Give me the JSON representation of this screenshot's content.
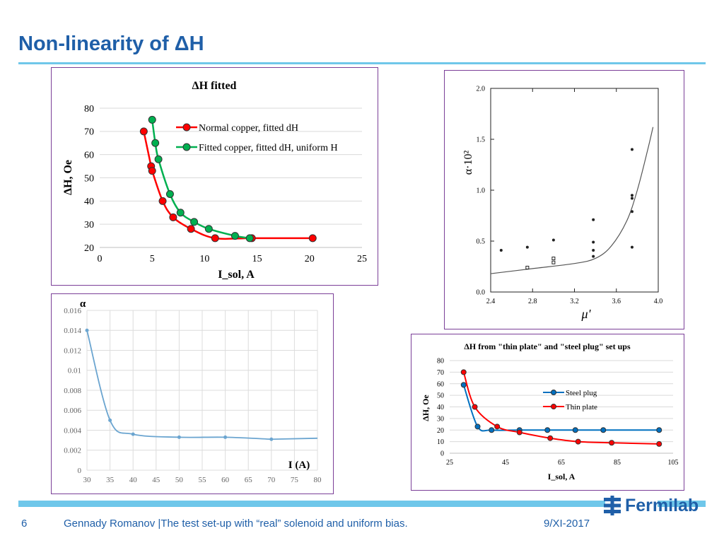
{
  "slide": {
    "title": "Non-linearity of ΔH",
    "page_number": "6",
    "footer_text": "Gennady Romanov |The test set-up with “real” solenoid and uniform bias.",
    "date": "9/XI-2017",
    "logo_text": "Fermilab",
    "accent_color": "#1f5fa8",
    "rule_color": "#6fc7ea"
  },
  "chart_data": [
    {
      "id": "fitted",
      "type": "line",
      "title": "ΔH fitted",
      "xlabel": "I_sol, A",
      "ylabel": "ΔH, Oe",
      "xlim": [
        0,
        25
      ],
      "ylim": [
        20,
        80
      ],
      "xticks": [
        0,
        5,
        10,
        15,
        20,
        25
      ],
      "yticks": [
        20,
        30,
        40,
        50,
        60,
        70,
        80
      ],
      "grid": true,
      "legend": "top-right",
      "series": [
        {
          "name": "Normal copper, fitted dH",
          "color": "#ff0000",
          "x": [
            4.2,
            4.9,
            5.0,
            6.0,
            7.0,
            8.7,
            11.0,
            14.5,
            20.3
          ],
          "y": [
            70,
            55,
            53,
            40,
            33,
            28,
            24,
            24,
            24
          ]
        },
        {
          "name": "Fitted copper, fitted dH, uniform H",
          "color": "#00b050",
          "x": [
            5.0,
            5.3,
            5.6,
            6.7,
            7.7,
            9.0,
            10.4,
            12.9,
            14.3
          ],
          "y": [
            75,
            65,
            58,
            43,
            35,
            31,
            28,
            25,
            24
          ]
        }
      ]
    },
    {
      "id": "alpha-mu",
      "type": "scatter",
      "title": "",
      "xlabel": "μ'",
      "ylabel": "α·10²",
      "xlim": [
        2.4,
        4.0
      ],
      "ylim": [
        0.0,
        2.0
      ],
      "xticks": [
        "2.4",
        "2.8",
        "3.2",
        "3.6",
        "4.0"
      ],
      "yticks": [
        "0.0",
        "0.5",
        "1.0",
        "1.5",
        "2.0"
      ],
      "grid": false,
      "series": [
        {
          "name": "",
          "kind": "curve",
          "color": "#555555",
          "x": [
            2.4,
            2.8,
            3.2,
            3.4,
            3.55,
            3.7,
            3.8,
            3.9,
            3.95
          ],
          "y": [
            0.18,
            0.23,
            0.28,
            0.33,
            0.45,
            0.7,
            1.0,
            1.4,
            1.62
          ]
        },
        {
          "name": "",
          "kind": "points",
          "color": "#222222",
          "x": [
            2.5,
            2.75,
            3.0,
            3.38,
            3.38,
            3.38,
            3.38,
            3.75,
            3.75,
            3.75,
            3.75,
            3.75
          ],
          "y": [
            0.41,
            0.44,
            0.51,
            0.71,
            0.49,
            0.41,
            0.35,
            1.4,
            0.95,
            0.92,
            0.79,
            0.44
          ]
        },
        {
          "name": "",
          "kind": "points",
          "color": "#222222",
          "x": [
            2.75,
            3.0,
            3.0
          ],
          "y": [
            0.24,
            0.29,
            0.33
          ]
        }
      ]
    },
    {
      "id": "alpha-current",
      "type": "line",
      "title": "",
      "xlabel": "I (A)",
      "ylabel": "α",
      "xlim": [
        30,
        80
      ],
      "ylim": [
        0,
        0.016
      ],
      "xticks": [
        30,
        35,
        40,
        45,
        50,
        55,
        60,
        65,
        70,
        75,
        80
      ],
      "yticks": [
        "0",
        "0.002",
        "0.004",
        "0.006",
        "0.008",
        "0.01",
        "0.012",
        "0.014",
        "0.016"
      ],
      "grid": true,
      "series": [
        {
          "name": "",
          "color": "#6ba5d0",
          "x": [
            30,
            35,
            40,
            50,
            60,
            70
          ],
          "y": [
            0.014,
            0.005,
            0.0036,
            0.0033,
            0.0033,
            0.0031
          ]
        }
      ]
    },
    {
      "id": "setups",
      "type": "line",
      "title": "ΔH from \"thin plate\" and \"steel plug\" set ups",
      "xlabel": "I_sol, A",
      "ylabel": "ΔH, Oe",
      "xlim": [
        25,
        105
      ],
      "ylim": [
        0,
        80
      ],
      "xticks": [
        25,
        45,
        65,
        85,
        105
      ],
      "yticks": [
        0,
        10,
        20,
        30,
        40,
        50,
        60,
        70,
        80
      ],
      "grid": true,
      "legend": "right",
      "series": [
        {
          "name": "Steel plug",
          "color": "#0070c0",
          "x": [
            30,
            35,
            40,
            50,
            60,
            70,
            80,
            100
          ],
          "y": [
            59,
            23,
            20,
            20,
            20,
            20,
            20,
            20
          ]
        },
        {
          "name": "Thin plate",
          "color": "#ff0000",
          "x": [
            30,
            34,
            42,
            50,
            61,
            71,
            83,
            100
          ],
          "y": [
            70,
            40,
            23,
            18,
            13,
            10,
            9,
            8
          ]
        }
      ]
    }
  ]
}
